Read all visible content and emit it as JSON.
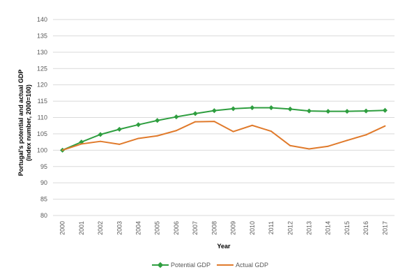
{
  "chart_data": {
    "type": "line",
    "xlabel": "Year",
    "ylabel_line1": "Portugal's potential and actual GDP",
    "ylabel_line2": "(index number, 2000=100)",
    "ylim": [
      80,
      140
    ],
    "ytick_step": 5,
    "grid": true,
    "legend_position": "bottom",
    "categories": [
      "2000",
      "2001",
      "2002",
      "2003",
      "2004",
      "2005",
      "2006",
      "2007",
      "2008",
      "2009",
      "2010",
      "2011",
      "2012",
      "2013",
      "2014",
      "2015",
      "2016",
      "2017"
    ],
    "series": [
      {
        "name": "Potential GDP",
        "color": "#2e9e3f",
        "marker": "diamond",
        "values": [
          100,
          102.5,
          104.8,
          106.4,
          107.8,
          109.1,
          110.2,
          111.2,
          112.1,
          112.7,
          113.0,
          113.0,
          112.6,
          112.0,
          111.9,
          111.9,
          112.0,
          112.2
        ]
      },
      {
        "name": "Actual GDP",
        "color": "#e07a2b",
        "marker": "none",
        "values": [
          100,
          101.9,
          102.7,
          101.8,
          103.6,
          104.4,
          106.0,
          108.7,
          108.8,
          105.7,
          107.6,
          105.8,
          101.4,
          100.4,
          101.2,
          103.0,
          104.7,
          107.4
        ]
      }
    ]
  }
}
